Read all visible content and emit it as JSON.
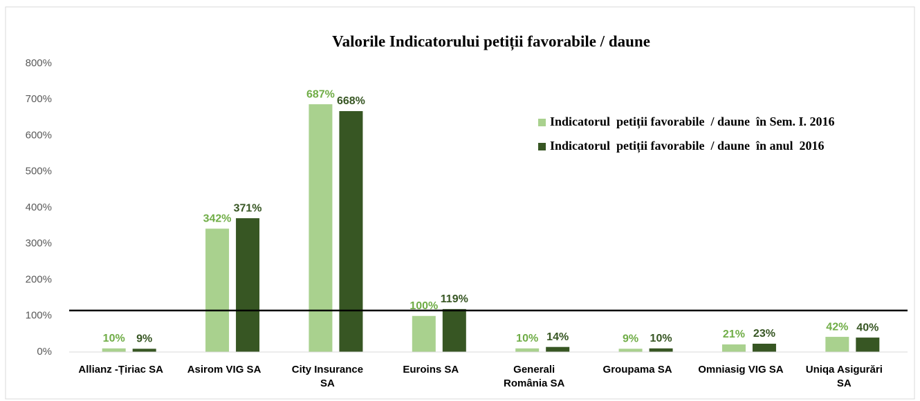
{
  "chart_data": {
    "type": "bar",
    "title": "Valorile Indicatorului  petiții favorabile  / daune",
    "categories": [
      "Allianz -Țiriac SA",
      "Asirom VIG SA",
      "City Insurance\nSA",
      "Euroins  SA",
      "Generali\nRomânia SA",
      "Groupama SA",
      "Omniasig VIG SA",
      "Uniqa Asigurări\nSA"
    ],
    "series": [
      {
        "name": "Indicatorul  petiții favorabile  / daune  în Sem. I. 2016",
        "color": "#a9d18e",
        "label_color": "#70ad47",
        "values": [
          10,
          342,
          687,
          100,
          10,
          9,
          21,
          42
        ],
        "value_labels": [
          "10%",
          "342%",
          "687%",
          "100%",
          "10%",
          "9%",
          "21%",
          "42%"
        ]
      },
      {
        "name": "Indicatorul  petiții favorabile  / daune  în anul  2016",
        "color": "#375623",
        "label_color": "#375623",
        "values": [
          9,
          371,
          668,
          119,
          14,
          10,
          23,
          40
        ],
        "value_labels": [
          "9%",
          "371%",
          "668%",
          "119%",
          "14%",
          "10%",
          "23%",
          "40%"
        ]
      }
    ],
    "ylim": [
      0,
      800
    ],
    "yticks": [
      {
        "value": 0,
        "label": "0%"
      },
      {
        "value": 100,
        "label": "100%"
      },
      {
        "value": 200,
        "label": "200%"
      },
      {
        "value": 300,
        "label": "300%"
      },
      {
        "value": 400,
        "label": "400%"
      },
      {
        "value": 500,
        "label": "500%"
      },
      {
        "value": 600,
        "label": "600%"
      },
      {
        "value": 700,
        "label": "700%"
      },
      {
        "value": 800,
        "label": "800%"
      }
    ],
    "hline": 115,
    "legend": "upper right",
    "grid": false
  }
}
